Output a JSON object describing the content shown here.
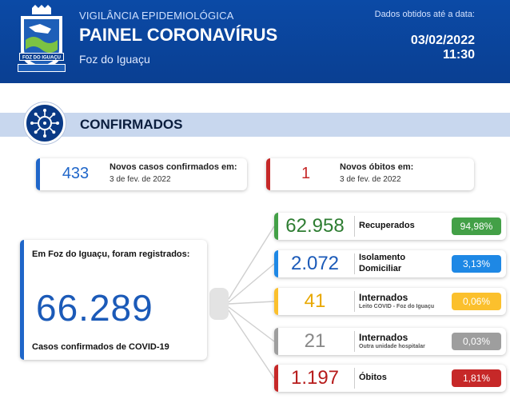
{
  "header": {
    "subtitle": "VIGILÂNCIA EPIDEMIOLÓGICA",
    "title": "PAINEL CORONAVÍRUS",
    "city": "Foz do Iguaçu",
    "date_label": "Dados obtidos até a data:",
    "date": "03/02/2022",
    "time": "11:30",
    "crest_text": "FOZ DO IGUAÇU"
  },
  "section": {
    "title": "CONFIRMADOS"
  },
  "top_cards": [
    {
      "value": "433",
      "label": "Novos casos confirmados em:",
      "date": "3 de fev. de 2022",
      "color": "#1f66c9"
    },
    {
      "value": "1",
      "label": "Novos óbitos em:",
      "date": "3 de fev. de 2022",
      "color": "#c62828"
    }
  ],
  "total": {
    "label": "Em Foz do Iguaçu, foram registrados:",
    "value": "66.289",
    "caption": "Casos confirmados de COVID-19",
    "color": "#1f66c9"
  },
  "rows": [
    {
      "value": "62.958",
      "label": "Recuperados",
      "sublabel": "",
      "pct": "94,98%",
      "color": "#43a047",
      "num_color": "#2e7d32"
    },
    {
      "value": "2.072",
      "label": "Isolamento Domiciliar",
      "sublabel": "",
      "pct": "3,13%",
      "color": "#1e88e5",
      "num_color": "#1b5ab8"
    },
    {
      "value": "41",
      "label": "Internados",
      "sublabel": "Leito COVID - Foz do Iguaçu",
      "pct": "0,06%",
      "color": "#fbc02d",
      "num_color": "#e8a800"
    },
    {
      "value": "21",
      "label": "Internados",
      "sublabel": "Outra unidade hospitalar",
      "pct": "0,03%",
      "color": "#9e9e9e",
      "num_color": "#888888"
    },
    {
      "value": "1.197",
      "label": "Óbitos",
      "sublabel": "",
      "pct": "1,81%",
      "color": "#c62828",
      "num_color": "#b71c1c"
    }
  ]
}
